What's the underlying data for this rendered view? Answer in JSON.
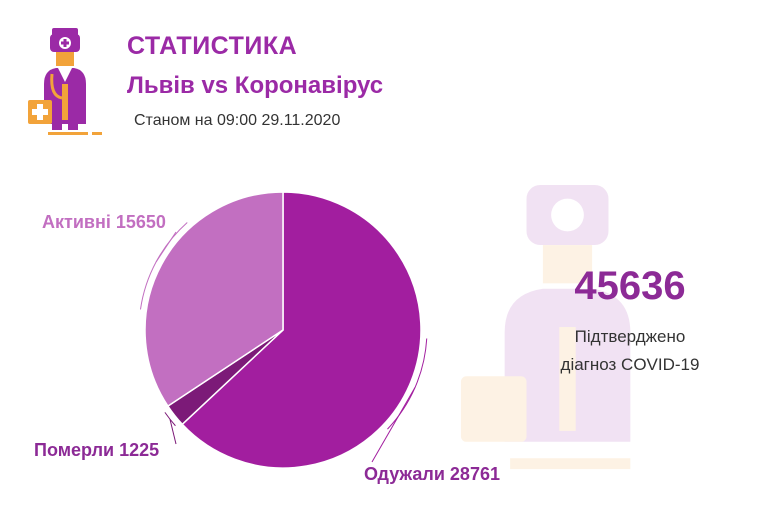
{
  "header": {
    "title": "СТАТИСТИКА",
    "subtitle": "Львів vs Коронавірус",
    "date_text": "Станом на 09:00 29.11.2020"
  },
  "summary": {
    "total": "45636",
    "caption_line1": "Підтверджено",
    "caption_line2": "діагноз COVID-19"
  },
  "colors": {
    "accent": "#9b2aa6",
    "recovered": "#a21e9f",
    "active": "#c26fc1",
    "died": "#7c1a78",
    "logo_orange": "#f2a33a"
  },
  "chart_data": {
    "type": "pie",
    "title": "",
    "slices": [
      {
        "label": "Одужали",
        "value": 28761,
        "display": "Одужали 28761",
        "color": "#a21e9f"
      },
      {
        "label": "Померли",
        "value": 1225,
        "display": "Померли 1225",
        "color": "#7c1a78"
      },
      {
        "label": "Активні",
        "value": 15650,
        "display": "Активні 15650",
        "color": "#c26fc1"
      }
    ]
  }
}
